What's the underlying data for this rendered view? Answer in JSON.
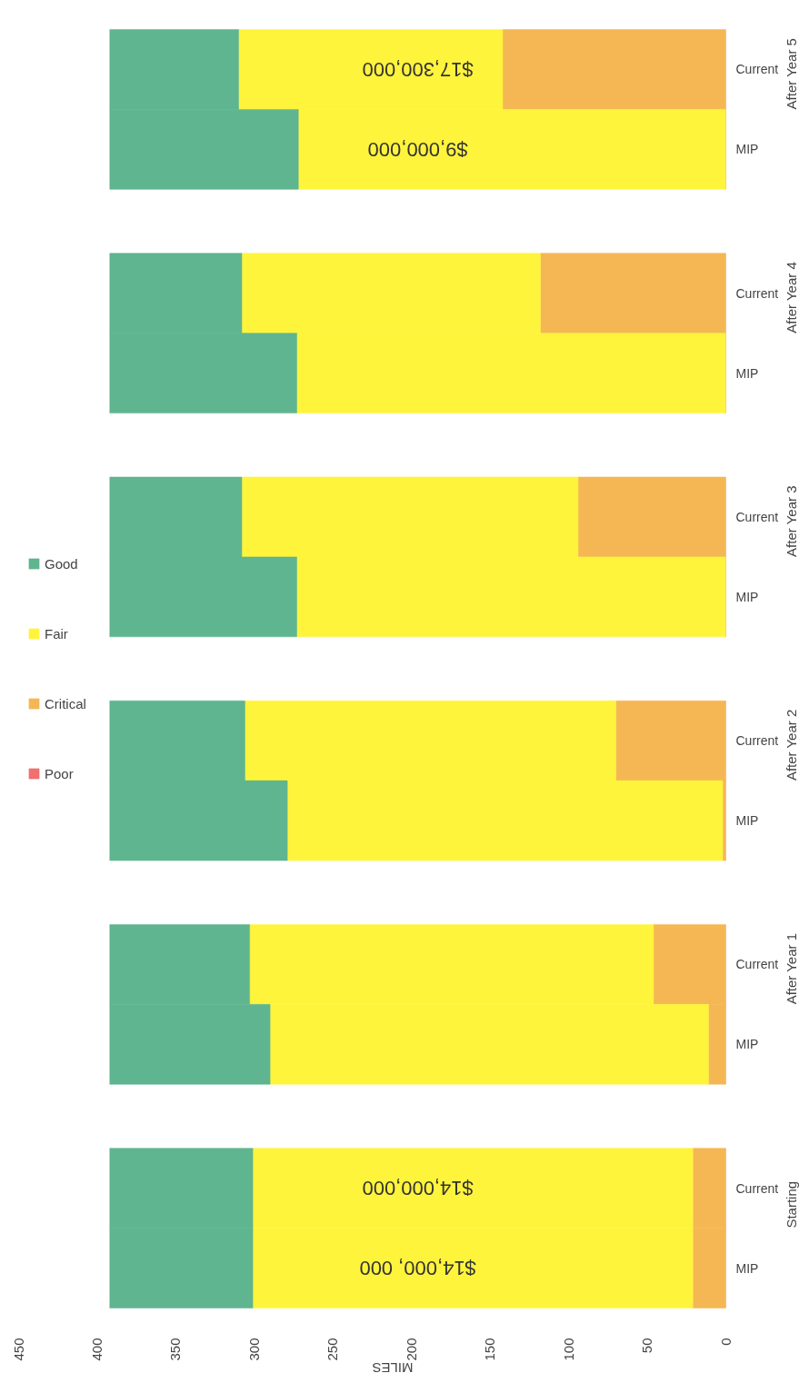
{
  "chart_data": {
    "type": "bar",
    "orientation": "horizontal",
    "stacked": true,
    "xlabel": "MILES",
    "categories": [
      "Current",
      "MIP",
      "Current",
      "MIP",
      "Current",
      "MIP",
      "Current",
      "MIP",
      "Current",
      "MIP",
      "Current",
      "MIP"
    ],
    "series": [
      {
        "name": "Poor",
        "color": "#f07070",
        "values": [
          0,
          0,
          0,
          0,
          0,
          0,
          0,
          0,
          0,
          0,
          0,
          0
        ]
      },
      {
        "name": "Critical",
        "color": "#f5b754",
        "values": [
          142,
          0,
          118,
          0,
          94,
          0,
          70,
          2,
          46,
          11,
          21,
          21
        ]
      },
      {
        "name": "Fair",
        "color": "#fff43c",
        "values": [
          168,
          272,
          190,
          273,
          214,
          273,
          236,
          277,
          257,
          279,
          280,
          280
        ]
      },
      {
        "name": "Good",
        "color": "#5fb58f",
        "values": [
          82,
          120,
          84,
          119,
          84,
          119,
          86,
          113,
          89,
          102,
          91,
          91
        ]
      }
    ],
    "annotations": [
      "After Year 5",
      "After Year 4",
      "After Year 3",
      "After Year 2",
      "After Year 1",
      "Starting",
      "$17,300,000",
      "$9,000,000",
      "$14,000,000",
      "$14,000, 000"
    ],
    "xlim": [
      450,
      0
    ],
    "xticks": [
      0,
      50,
      100,
      150,
      200,
      250,
      300,
      350,
      400,
      450
    ],
    "legend": "left",
    "grid": false
  }
}
